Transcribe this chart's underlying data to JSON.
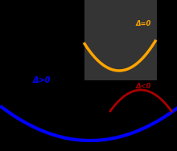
{
  "bg_color": "#000000",
  "blue_color": "#0000ff",
  "orange_color": "#ffa500",
  "red_color": "#aa0000",
  "gray_box_color": "#606060",
  "label_delta_pos": "Δ>0",
  "label_delta_zero": "Δ=0",
  "label_delta_neg": "Δ<0",
  "figsize": [
    2.2,
    1.88
  ],
  "dpi": 100
}
